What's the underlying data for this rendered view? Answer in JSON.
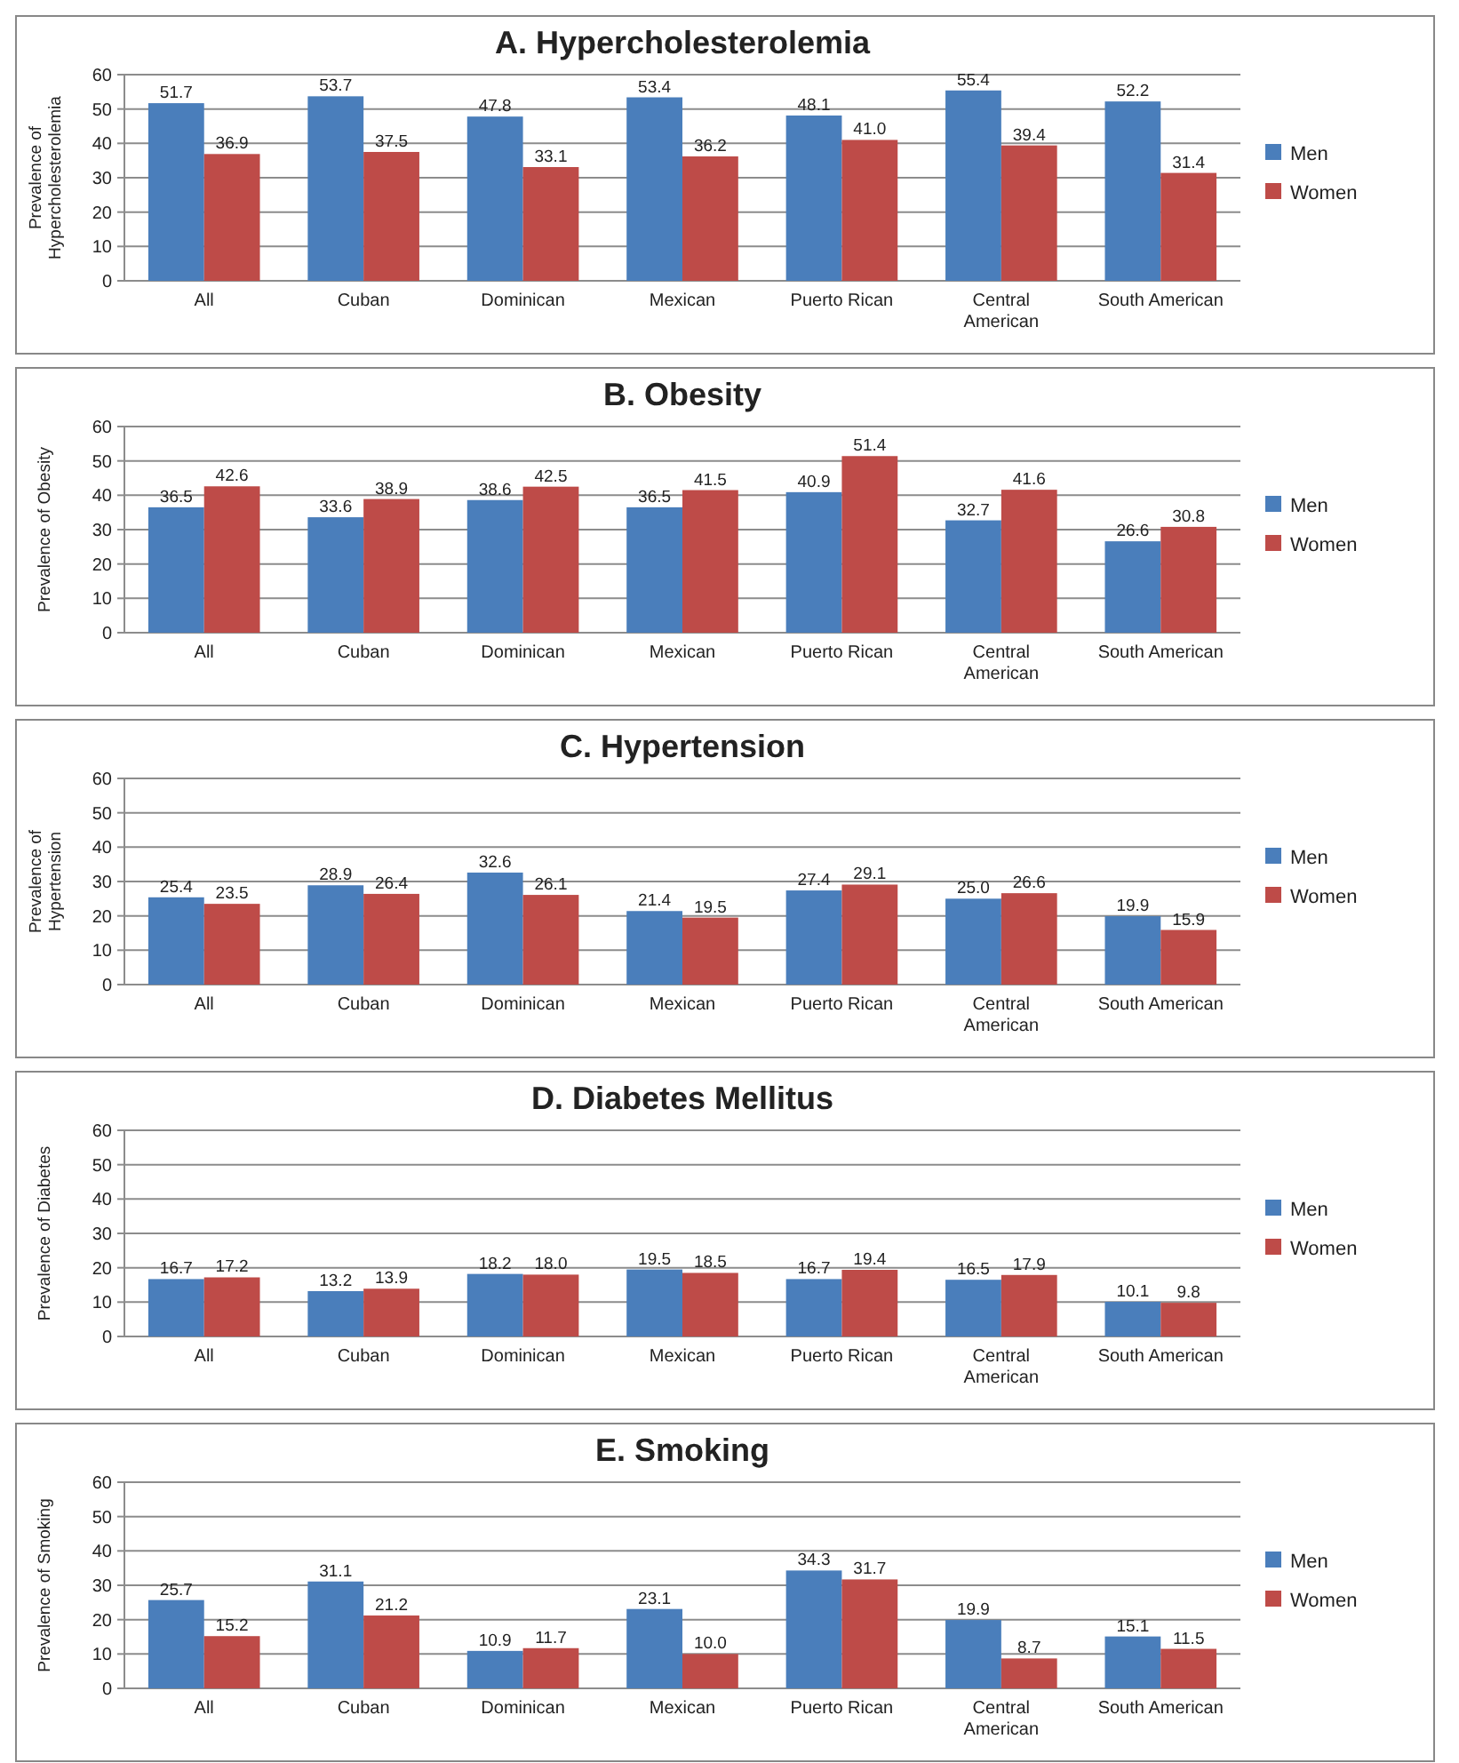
{
  "chart_data": [
    {
      "type": "bar",
      "title": "A. Hypercholesterolemia",
      "ylabel": "Prevalence of Hypercholesterolemia",
      "categories": [
        "All",
        "Cuban",
        "Dominican",
        "Mexican",
        "Puerto Rican",
        "Central American",
        "South American"
      ],
      "series": [
        {
          "name": "Men",
          "color": "#4a7ebb",
          "values": [
            51.7,
            53.7,
            47.8,
            53.4,
            48.1,
            55.4,
            52.2
          ]
        },
        {
          "name": "Women",
          "color": "#be4b48",
          "values": [
            36.9,
            37.5,
            33.1,
            36.2,
            41.0,
            39.4,
            31.4
          ],
          "value_labels": [
            "36.9",
            "37.5",
            "33.1",
            "36.2",
            "41.0",
            "39.4",
            "31.4"
          ]
        }
      ],
      "ylim": [
        0,
        60
      ],
      "yticks": [
        0,
        10,
        20,
        30,
        40,
        50,
        60
      ],
      "grid": "y",
      "legend": "right",
      "data_labels": true
    },
    {
      "type": "bar",
      "title": "B. Obesity",
      "ylabel": "Prevalence of Obesity",
      "categories": [
        "All",
        "Cuban",
        "Dominican",
        "Mexican",
        "Puerto Rican",
        "Central American",
        "South American"
      ],
      "series": [
        {
          "name": "Men",
          "color": "#4a7ebb",
          "values": [
            36.5,
            33.6,
            38.6,
            36.5,
            40.9,
            32.7,
            26.6
          ]
        },
        {
          "name": "Women",
          "color": "#be4b48",
          "values": [
            42.6,
            38.9,
            42.5,
            41.5,
            51.4,
            41.6,
            30.8
          ]
        }
      ],
      "ylim": [
        0,
        60
      ],
      "yticks": [
        0,
        10,
        20,
        30,
        40,
        50,
        60
      ],
      "grid": "y",
      "legend": "right",
      "data_labels": true
    },
    {
      "type": "bar",
      "title": "C. Hypertension",
      "ylabel": "Prevalence of Hypertension",
      "categories": [
        "All",
        "Cuban",
        "Dominican",
        "Mexican",
        "Puerto Rican",
        "Central American",
        "South American"
      ],
      "series": [
        {
          "name": "Men",
          "color": "#4a7ebb",
          "values": [
            25.4,
            28.9,
            32.6,
            21.4,
            27.4,
            25.0,
            19.9
          ],
          "value_labels": [
            "25.4",
            "28.9",
            "32.6",
            "21.4",
            "27.4",
            "25.0",
            "19.9"
          ]
        },
        {
          "name": "Women",
          "color": "#be4b48",
          "values": [
            23.5,
            26.4,
            26.1,
            19.5,
            29.1,
            26.6,
            15.9
          ]
        }
      ],
      "ylim": [
        0,
        60
      ],
      "yticks": [
        0,
        10,
        20,
        30,
        40,
        50,
        60
      ],
      "grid": "y",
      "legend": "right",
      "data_labels": true
    },
    {
      "type": "bar",
      "title": "D. Diabetes Mellitus",
      "ylabel": "Prevalence of Diabetes",
      "categories": [
        "All",
        "Cuban",
        "Dominican",
        "Mexican",
        "Puerto Rican",
        "Central American",
        "South American"
      ],
      "series": [
        {
          "name": "Men",
          "color": "#4a7ebb",
          "values": [
            16.7,
            13.2,
            18.2,
            19.5,
            16.7,
            16.5,
            10.1
          ]
        },
        {
          "name": "Women",
          "color": "#be4b48",
          "values": [
            17.2,
            13.9,
            18.0,
            18.5,
            19.4,
            17.9,
            9.8
          ],
          "value_labels": [
            "17.2",
            "13.9",
            "18.0",
            "18.5",
            "19.4",
            "17.9",
            "9.8"
          ]
        }
      ],
      "ylim": [
        0,
        60
      ],
      "yticks": [
        0,
        10,
        20,
        30,
        40,
        50,
        60
      ],
      "grid": "y",
      "legend": "right",
      "data_labels": true
    },
    {
      "type": "bar",
      "title": "E. Smoking",
      "ylabel": "Prevalence of Smoking",
      "categories": [
        "All",
        "Cuban",
        "Dominican",
        "Mexican",
        "Puerto Rican",
        "Central American",
        "South American"
      ],
      "series": [
        {
          "name": "Men",
          "color": "#4a7ebb",
          "values": [
            25.7,
            31.1,
            10.9,
            23.1,
            34.3,
            19.9,
            15.1
          ]
        },
        {
          "name": "Women",
          "color": "#be4b48",
          "values": [
            15.2,
            21.2,
            11.7,
            10.0,
            31.7,
            8.7,
            11.5
          ],
          "value_labels": [
            "15.2",
            "21.2",
            "11.7",
            "10.0",
            "31.7",
            "8.7",
            "11.5"
          ]
        }
      ],
      "ylim": [
        0,
        60
      ],
      "yticks": [
        0,
        10,
        20,
        30,
        40,
        50,
        60
      ],
      "grid": "y",
      "legend": "right",
      "data_labels": true
    }
  ]
}
